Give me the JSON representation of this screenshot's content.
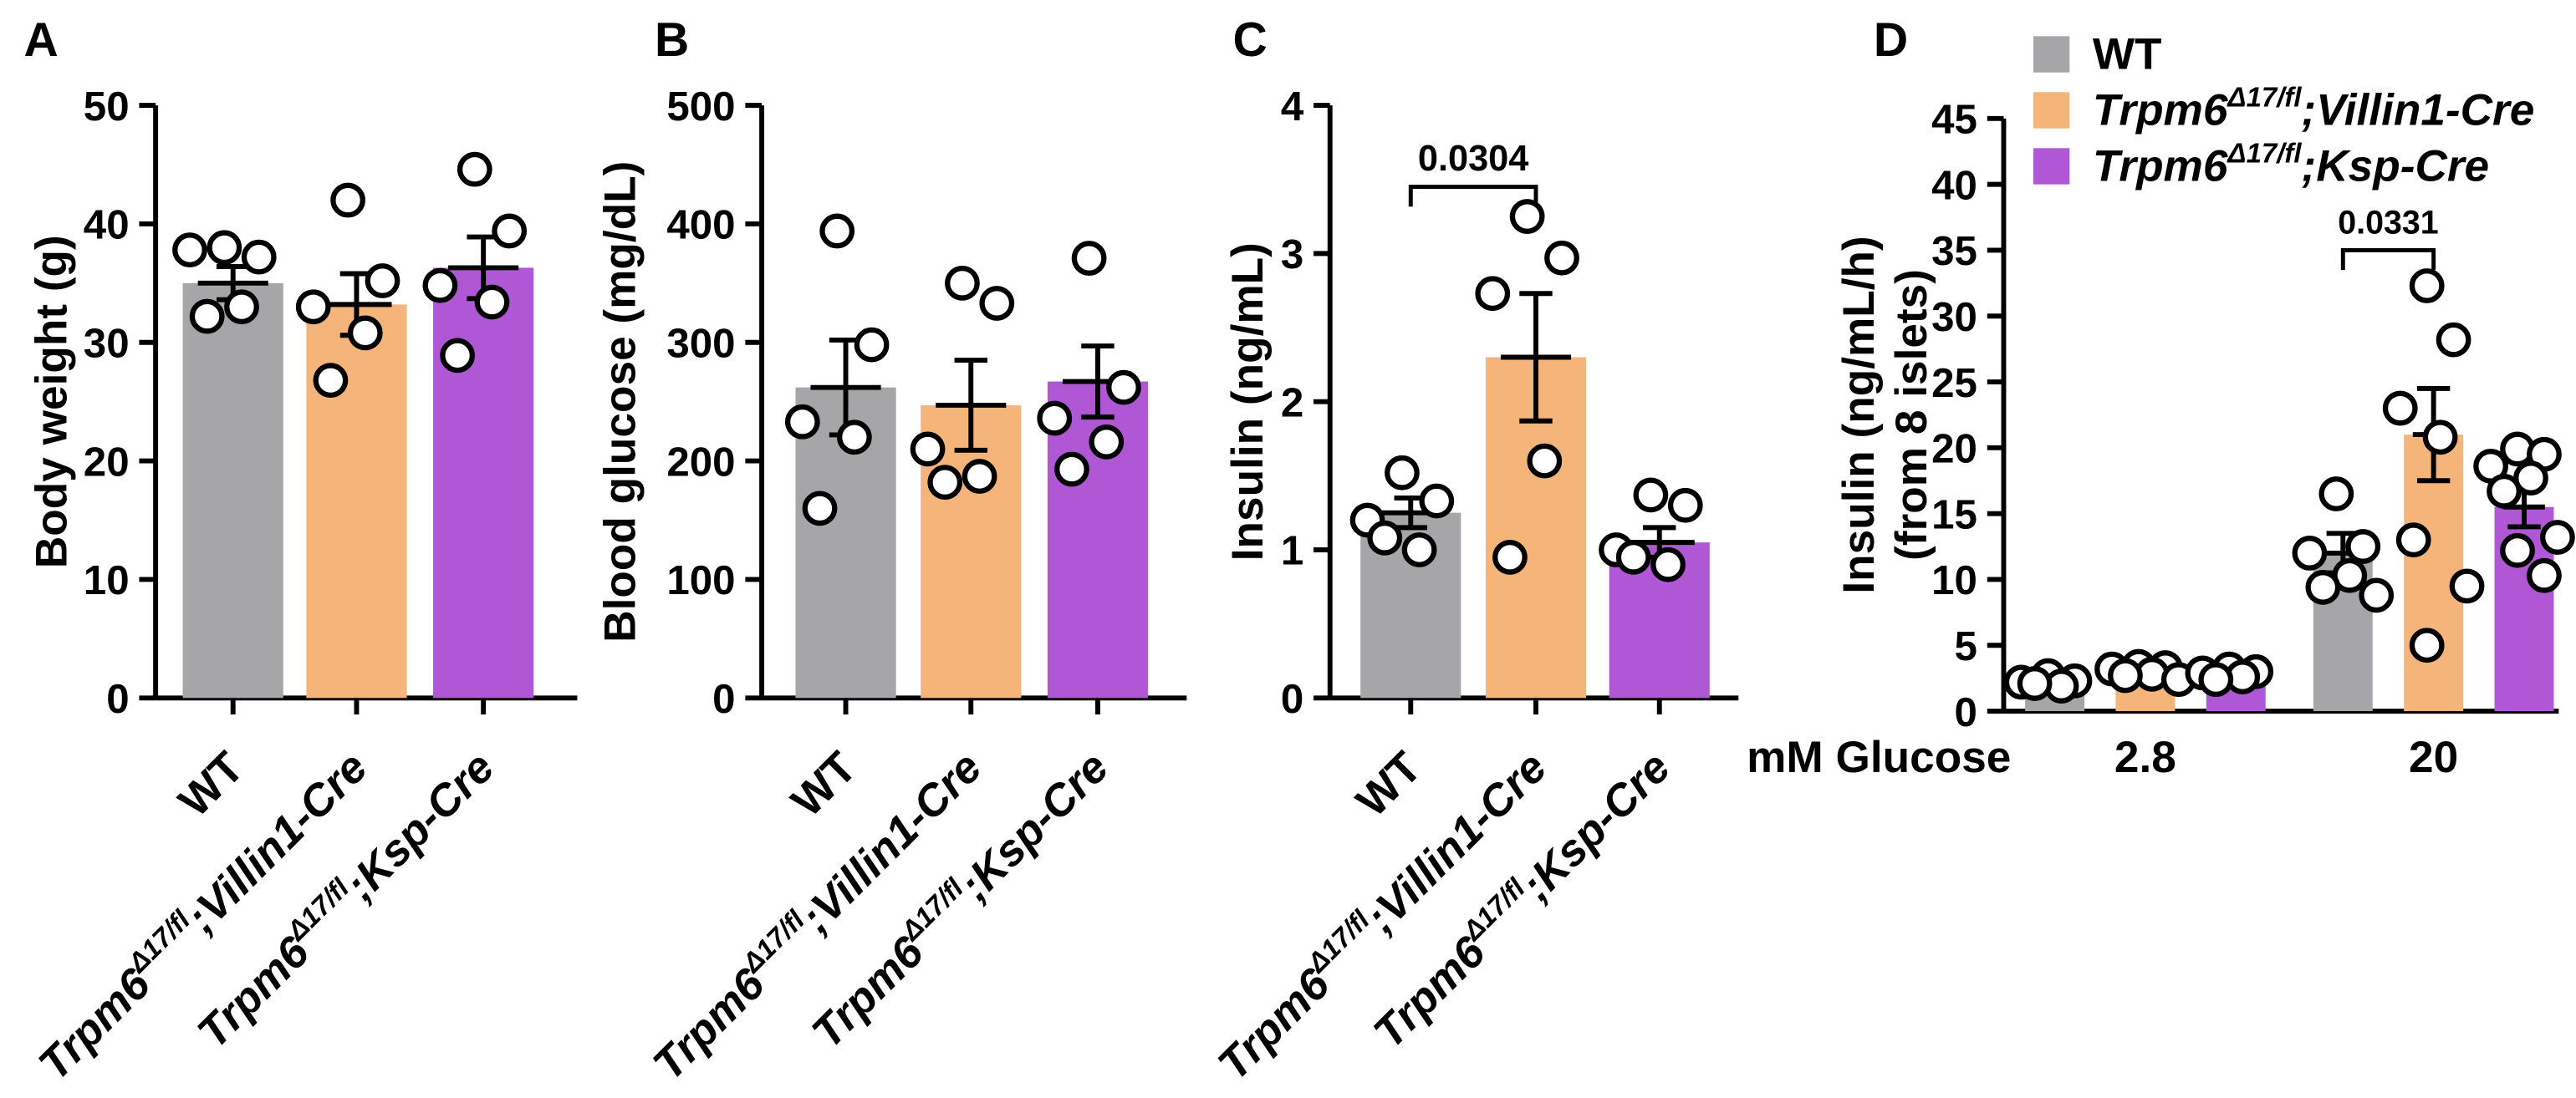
{
  "colors": {
    "WT": "#a6a6a8",
    "Villin1": "#f4b47a",
    "Ksp": "#b057d6",
    "axis": "#000000",
    "point_fill": "#ffffff"
  },
  "groups": {
    "WT": {
      "base": "WT"
    },
    "Villin1": {
      "base": "Trpm6",
      "sup": "Δ17/fl",
      "tail": ";Villin1-Cre"
    },
    "Ksp": {
      "base": "Trpm6",
      "sup": "Δ17/fl",
      "tail": ";Ksp-Cre"
    }
  },
  "chart_data": [
    {
      "type": "bar",
      "panel": "A",
      "ylabel": "Body weight (g)",
      "ylim": [
        0,
        50
      ],
      "yticks": [
        0,
        10,
        20,
        30,
        40,
        50
      ],
      "categories": [
        "WT",
        "Villin1",
        "Ksp"
      ],
      "series": [
        {
          "name": "WT",
          "mean": 35.0,
          "sem": 1.4,
          "points": [
            38.0,
            37.2,
            37.8,
            33.0,
            32.2
          ]
        },
        {
          "name": "Villin1",
          "mean": 33.2,
          "sem": 2.6,
          "points": [
            42.0,
            35.2,
            33.0,
            30.8,
            26.8
          ]
        },
        {
          "name": "Ksp",
          "mean": 36.3,
          "sem": 2.6,
          "points": [
            44.6,
            39.4,
            34.8,
            33.4,
            28.9
          ]
        }
      ]
    },
    {
      "type": "bar",
      "panel": "B",
      "ylabel": "Blood glucose (mg/dL)",
      "ylim": [
        0,
        500
      ],
      "yticks": [
        0,
        100,
        200,
        300,
        400,
        500
      ],
      "categories": [
        "WT",
        "Villin1",
        "Ksp"
      ],
      "series": [
        {
          "name": "WT",
          "mean": 262,
          "sem": 40,
          "points": [
            394,
            298,
            233,
            220,
            160
          ]
        },
        {
          "name": "Villin1",
          "mean": 247,
          "sem": 38,
          "points": [
            350,
            333,
            210,
            187,
            182
          ]
        },
        {
          "name": "Ksp",
          "mean": 267,
          "sem": 30,
          "points": [
            371,
            262,
            236,
            216,
            193
          ]
        }
      ]
    },
    {
      "type": "bar",
      "panel": "C",
      "ylabel": "Insulin (ng/mL)",
      "ylim": [
        0,
        4
      ],
      "yticks": [
        0,
        1,
        2,
        3,
        4
      ],
      "categories": [
        "WT",
        "Villin1",
        "Ksp"
      ],
      "series": [
        {
          "name": "WT",
          "mean": 1.25,
          "sem": 0.1,
          "points": [
            1.52,
            1.33,
            1.2,
            1.0,
            1.08
          ]
        },
        {
          "name": "Villin1",
          "mean": 2.3,
          "sem": 0.43,
          "points": [
            3.25,
            2.97,
            2.73,
            1.6,
            0.95
          ]
        },
        {
          "name": "Ksp",
          "mean": 1.05,
          "sem": 0.1,
          "points": [
            1.37,
            1.3,
            1.0,
            0.9,
            0.95
          ]
        }
      ],
      "annotation": {
        "text": "0.0304",
        "from": 0,
        "to": 1,
        "y": 3.45
      }
    },
    {
      "type": "bar",
      "panel": "D",
      "ylabel": [
        "Insulin (ng/mL/h)",
        "(from 8 islets)"
      ],
      "ylim": [
        0,
        45
      ],
      "yticks": [
        0,
        5,
        10,
        15,
        20,
        25,
        30,
        35,
        40,
        45
      ],
      "xlabel": "mM Glucose",
      "categories": [
        "2.8",
        "20"
      ],
      "series": [
        {
          "name": "WT",
          "values": [
            2.0,
            12.0
          ],
          "sem": [
            0.2,
            1.5
          ],
          "points": [
            [
              2.7,
              2.3,
              2.2,
              1.9,
              2.1
            ],
            [
              16.5,
              12.5,
              12.0,
              10.3,
              9.4,
              8.8
            ]
          ]
        },
        {
          "name": "Villin1",
          "values": [
            3.0,
            21.0
          ],
          "sem": [
            0.3,
            3.5
          ],
          "points": [
            [
              3.4,
              3.3,
              3.2,
              2.8,
              2.7,
              2.4
            ],
            [
              32.3,
              28.2,
              23.0,
              20.8,
              13.0,
              9.5,
              5.0
            ]
          ]
        },
        {
          "name": "Ksp",
          "values": [
            2.6,
            15.5
          ],
          "sem": [
            0.2,
            1.5
          ],
          "points": [
            [
              3.2,
              3.0,
              2.9,
              2.6,
              2.4
            ],
            [
              19.9,
              19.5,
              18.6,
              17.7,
              16.7,
              13.2,
              12.2,
              10.3
            ]
          ]
        }
      ],
      "annotation": {
        "text": "0.0331",
        "category": 1,
        "from": 0,
        "to": 1,
        "y": 35.0
      },
      "legend": {
        "placement": "top-right",
        "entries": [
          "WT",
          "Villin1",
          "Ksp"
        ]
      }
    }
  ],
  "panel_labels": [
    "A",
    "B",
    "C",
    "D"
  ]
}
